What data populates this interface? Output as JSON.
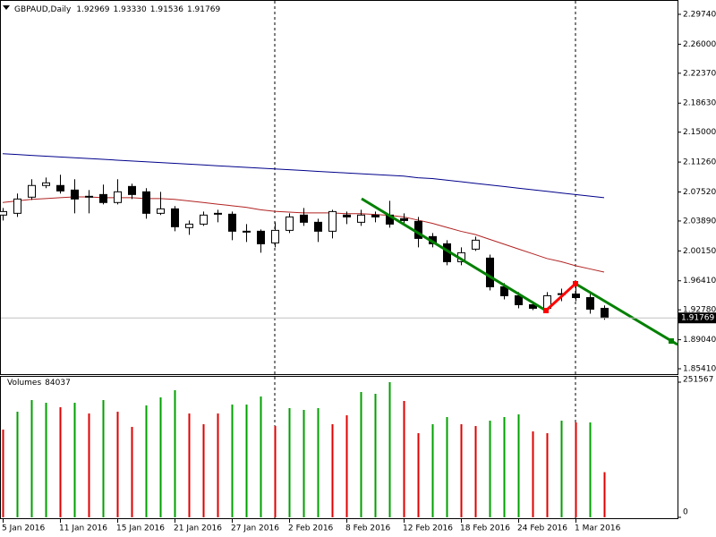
{
  "chart_data": {
    "type": "candlestick",
    "title": "GBPAUD,Daily",
    "ohlc_labels": [
      "1.92969",
      "1.93330",
      "1.91536",
      "1.91769"
    ],
    "categories": [
      "5 Jan 2016",
      null,
      null,
      null,
      "11 Jan 2016",
      null,
      null,
      null,
      "15 Jan 2016",
      null,
      null,
      null,
      "21 Jan 2016",
      null,
      null,
      null,
      "27 Jan 2016",
      null,
      null,
      null,
      "2 Feb 2016",
      null,
      null,
      null,
      "8 Feb 2016",
      null,
      null,
      null,
      "12 Feb 2016",
      null,
      null,
      null,
      "18 Feb 2016",
      null,
      null,
      null,
      "24 Feb 2016",
      null,
      null,
      null,
      "1 Mar 2016",
      null,
      null
    ],
    "open": [
      2.0463,
      2.0485,
      2.0687,
      2.0833,
      2.0833,
      2.0776,
      2.0687,
      2.072,
      2.062,
      2.0821,
      2.0754,
      2.0485,
      2.0541,
      2.0306,
      2.035,
      2.0474,
      2.0474,
      2.0261,
      2.0261,
      2.0115,
      2.0272,
      2.0463,
      2.0373,
      2.0261,
      2.0463,
      2.0373,
      2.0463,
      2.0463,
      2.0418,
      2.0384,
      2.0194,
      2.0104,
      1.988,
      2.0037,
      1.9925,
      1.9566,
      1.9454,
      1.9342,
      1.9297,
      1.9476,
      1.9476,
      1.9431,
      1.92969
    ],
    "high": [
      2.0552,
      2.0732,
      2.0911,
      2.0933,
      2.0967,
      2.0911,
      2.0776,
      2.0844,
      2.0911,
      2.0855,
      2.0799,
      2.0754,
      2.0575,
      2.0395,
      2.0507,
      2.053,
      2.0507,
      2.035,
      2.0283,
      2.0373,
      2.0485,
      2.0552,
      2.0418,
      2.053,
      2.0507,
      2.053,
      2.0507,
      2.0642,
      2.0485,
      2.044,
      2.0238,
      2.0149,
      2.0059,
      2.0194,
      1.9969,
      1.9611,
      1.9499,
      1.9386,
      1.9499,
      1.9543,
      1.9588,
      1.9476,
      1.9333
    ],
    "low": [
      2.0395,
      2.044,
      2.0653,
      2.0799,
      2.0732,
      2.0485,
      2.0485,
      2.0597,
      2.0597,
      2.0664,
      2.0418,
      2.0463,
      2.0261,
      2.0216,
      2.0328,
      2.0373,
      2.0149,
      2.0126,
      1.9992,
      2.0059,
      2.0238,
      2.0328,
      2.0126,
      2.0171,
      2.035,
      2.0328,
      2.0373,
      2.0306,
      2.035,
      2.0059,
      2.0059,
      1.9835,
      1.9835,
      2.0014,
      1.9521,
      1.9409,
      1.9297,
      1.9274,
      1.9252,
      1.9386,
      1.9386,
      1.9229,
      1.91536
    ],
    "close": [
      2.0507,
      2.0664,
      2.0833,
      2.0866,
      2.0765,
      2.0664,
      2.0698,
      2.062,
      2.0754,
      2.072,
      2.0485,
      2.0541,
      2.0317,
      2.035,
      2.0463,
      2.0485,
      2.0261,
      2.025,
      2.0104,
      2.0272,
      2.044,
      2.0373,
      2.0261,
      2.0507,
      2.044,
      2.0463,
      2.044,
      2.035,
      2.0395,
      2.0171,
      2.0104,
      1.988,
      1.9992,
      2.0149,
      1.9566,
      1.9454,
      1.9342,
      1.9297,
      1.9454,
      1.948,
      1.9431,
      1.9286,
      1.91769
    ],
    "up_color": "#ffffff",
    "down_color": "#000000",
    "overlays": [
      {
        "color": "#00008b",
        "values": [
          2.123,
          2.122,
          2.121,
          2.12,
          2.119,
          2.118,
          2.117,
          2.116,
          2.115,
          2.114,
          2.113,
          2.112,
          2.111,
          2.11,
          2.109,
          2.108,
          2.107,
          2.106,
          2.105,
          2.104,
          2.103,
          2.102,
          2.101,
          2.1,
          2.099,
          2.098,
          2.097,
          2.096,
          2.095,
          2.093,
          2.092,
          2.09,
          2.088,
          2.086,
          2.084,
          2.082,
          2.08,
          2.078,
          2.076,
          2.074,
          2.072,
          2.07,
          2.068
        ]
      },
      {
        "color": "#b22222",
        "values": [
          2.062,
          2.064,
          2.066,
          2.067,
          2.068,
          2.069,
          2.069,
          2.068,
          2.068,
          2.068,
          2.067,
          2.067,
          2.066,
          2.064,
          2.062,
          2.06,
          2.058,
          2.056,
          2.053,
          2.051,
          2.05,
          2.049,
          2.049,
          2.049,
          2.048,
          2.048,
          2.047,
          2.046,
          2.044,
          2.04,
          2.036,
          2.031,
          2.026,
          2.022,
          2.016,
          2.01,
          2.004,
          1.998,
          1.992,
          1.988,
          1.983,
          1.979,
          1.975
        ]
      }
    ],
    "ylim": [
      1.8474,
      2.3153
    ],
    "yticks": [
      {
        "value": 2.2974,
        "label": "2.29740"
      },
      {
        "value": 2.26,
        "label": "2.26000"
      },
      {
        "value": 2.2237,
        "label": "2.22370"
      },
      {
        "value": 2.1863,
        "label": "2.18630"
      },
      {
        "value": 2.15,
        "label": "2.15000"
      },
      {
        "value": 2.1126,
        "label": "2.11260"
      },
      {
        "value": 2.0752,
        "label": "2.07520"
      },
      {
        "value": 2.0389,
        "label": "2.03890"
      },
      {
        "value": 2.0015,
        "label": "2.00150"
      },
      {
        "value": 1.9641,
        "label": "1.96410"
      },
      {
        "value": 1.9278,
        "label": "1.92780"
      },
      {
        "value": 1.8904,
        "label": "1.89040"
      },
      {
        "value": 1.8541,
        "label": "1.85410"
      }
    ],
    "bid": {
      "value": 1.91769,
      "label": "1.91769"
    },
    "bid_color": "#c0c0c0",
    "volume": {
      "title": "Volumes",
      "values": [
        163300,
        196600,
        218200,
        213200,
        204900,
        213200,
        193300,
        218200,
        196600,
        168300,
        208300,
        223200,
        236600,
        193300,
        173300,
        193300,
        209900,
        209900,
        224900,
        169900,
        203300,
        199900,
        203300,
        173300,
        189900,
        233200,
        229900,
        251567,
        216600,
        156600,
        173300,
        186600,
        173300,
        169900,
        179900,
        186600,
        191600,
        159900,
        156600,
        179900,
        176600,
        176600,
        84037
      ],
      "colors": [
        "#e00000",
        "#00a000",
        "#00a000",
        "#00a000",
        "#e00000",
        "#00a000",
        "#e00000",
        "#00a000",
        "#e00000",
        "#e00000",
        "#00a000",
        "#00a000",
        "#00a000",
        "#e00000",
        "#e00000",
        "#e00000",
        "#00a000",
        "#00a000",
        "#00a000",
        "#e00000",
        "#00a000",
        "#00a000",
        "#00a000",
        "#e00000",
        "#e00000",
        "#00a000",
        "#00a000",
        "#00a000",
        "#e00000",
        "#e00000",
        "#00a000",
        "#00a000",
        "#e00000",
        "#e00000",
        "#00a000",
        "#00a000",
        "#00a000",
        "#e00000",
        "#e00000",
        "#00a000",
        "#e00000",
        "#00a000",
        "#e00000"
      ],
      "ylim": [
        0,
        251567
      ],
      "yticks": [
        0,
        251567
      ]
    }
  }
}
